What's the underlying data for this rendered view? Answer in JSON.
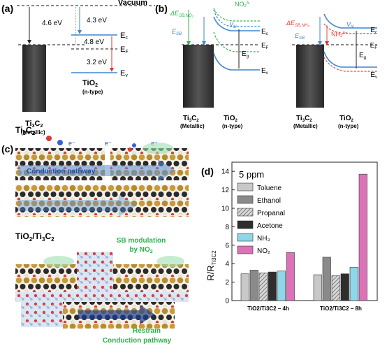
{
  "panel_a": {
    "label": "(a)",
    "vacuum": "Vacuum",
    "e1": "4.6 eV",
    "e2": "4.3 eV",
    "e3": "4.8 eV",
    "e4": "3.2 eV",
    "ec": "E",
    "ec_sub": "c",
    "ef": "E",
    "ef_sub": "F",
    "ev": "E",
    "ev_sub": "v",
    "m_name": "Ti",
    "m_sub1": "3",
    "m_name2": "C",
    "m_sub2": "2",
    "m_type": "(Metallic)",
    "s_name": "TiO",
    "s_sub": "2",
    "s_type": "(n-type)"
  },
  "panel_b": {
    "label": "(b)",
    "dsb_left": "ΔE",
    "dsb_left_sub": "SB,NO₂",
    "no2": "NO₂",
    "no2_sup": "δ-",
    "vbi": "V",
    "vbi_sub": "bi",
    "esb": "E",
    "esb_sub": "SB",
    "ec": "E",
    "ec_sub": "c",
    "ef": "E",
    "ef_sub": "F",
    "eg": "E",
    "eg_sub": "g",
    "ev": "E",
    "ev_sub": "v",
    "dsb_right": "ΔE",
    "dsb_right_sub": "SB,NH₃",
    "nh3": "NH₃",
    "nh3_sup": "δ+",
    "m_name": "Ti",
    "m_sub1": "3",
    "m_name2": "C",
    "m_sub2": "2",
    "m_type": "(Metallic)",
    "s_name": "TiO",
    "s_sub": "2",
    "s_type": "(n-type)"
  },
  "panel_c": {
    "label": "(c)",
    "top_title": "Ti",
    "top_sub1": "3",
    "top_title2": "C",
    "top_sub2": "2",
    "conduction": "Conduction pathway",
    "electron": "e⁻",
    "bottom_title": "TiO",
    "bottom_sub1": "2",
    "bottom_title2": "/Ti",
    "bottom_sub2": "3",
    "bottom_title3": "C",
    "bottom_sub3": "2",
    "sb_line1": "SB modulation",
    "sb_line2": "by NO",
    "sb_line2_sub": "2",
    "restrain1": "Restrain",
    "restrain2": "Conduction pathway"
  },
  "panel_d": {
    "label": "(d)",
    "ylabel_main": "R/R",
    "ylabel_sub": "Ti3C2",
    "annotation": "5 ppm"
  },
  "colors": {
    "no2_green": "#2db34a",
    "nh3_red": "#e0483c",
    "band_blue": "#3f86d0",
    "arrow_red": "#d9342b",
    "metal_dark": "#3c3c3c"
  },
  "chart_data": {
    "type": "bar",
    "categories": [
      "TiO2/Ti3C2 – 4h",
      "TiO2/Ti3C2 – 8h"
    ],
    "series": [
      {
        "name": "Toluene",
        "values": [
          2.9,
          2.8
        ],
        "color": "#c8c8c8"
      },
      {
        "name": "Ethanol",
        "values": [
          3.3,
          4.7
        ],
        "color": "#8a8a8a"
      },
      {
        "name": "Propanal",
        "values": [
          3.0,
          2.7
        ],
        "color": "#b4b4b4",
        "pattern": "hatch"
      },
      {
        "name": "Acetone",
        "values": [
          3.1,
          2.9
        ],
        "color": "#2e2e2e"
      },
      {
        "name": "NH3",
        "values": [
          3.2,
          3.6
        ],
        "color": "#8fd6e8"
      },
      {
        "name": "NO2",
        "values": [
          5.2,
          13.7
        ],
        "color": "#dc72b8"
      }
    ],
    "legend_labels": [
      "Toluene",
      "Ethanol",
      "Propanal",
      "Acetone",
      "NH₃",
      "NO₂"
    ],
    "ylabel": "R/R Ti3C2",
    "ylim": [
      0,
      15
    ],
    "yticks": [
      "0",
      "2",
      "4",
      "6",
      "8",
      "10",
      "12",
      "14"
    ],
    "legend_position": "top-left"
  }
}
